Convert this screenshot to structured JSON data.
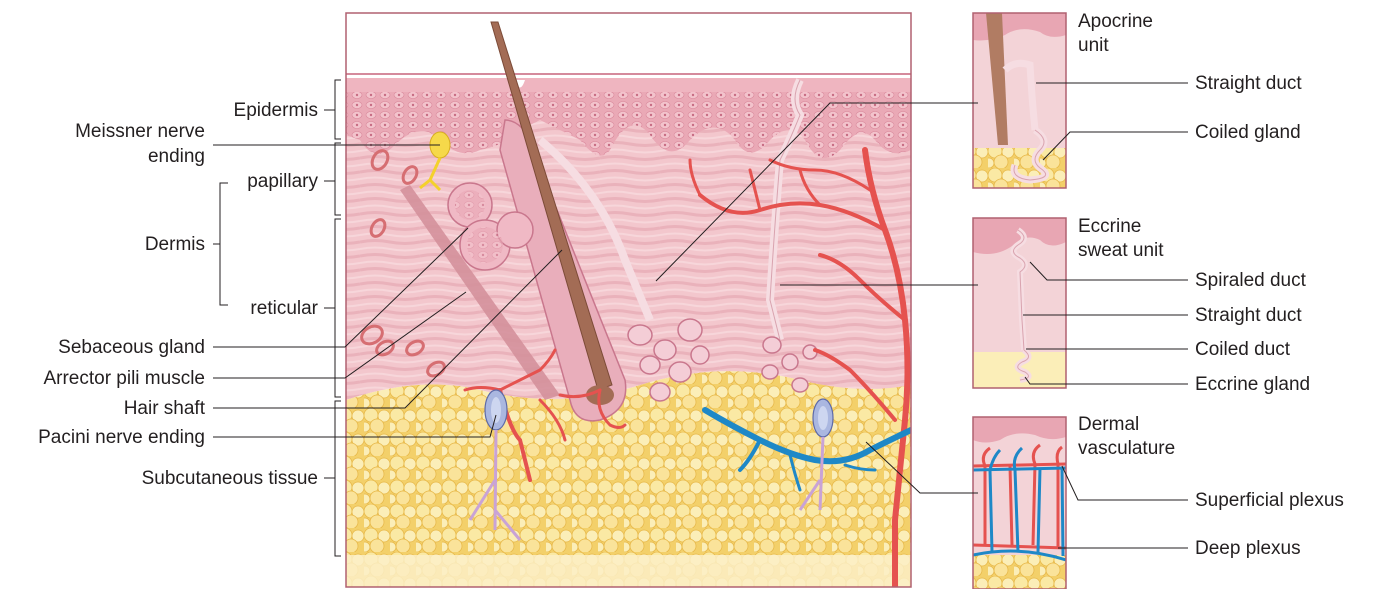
{
  "left_labels": {
    "epidermis": "Epidermis",
    "meissner_line1": "Meissner nerve",
    "meissner_line2": "ending",
    "papillary": "papillary",
    "dermis": "Dermis",
    "reticular": "reticular",
    "sebaceous_gland": "Sebaceous gland",
    "arrector_pili": "Arrector pili muscle",
    "hair_shaft": "Hair shaft",
    "pacini": "Pacini nerve ending",
    "subcutaneous": "Subcutaneous tissue"
  },
  "panels": {
    "apocrine": {
      "title_line1": "Apocrine",
      "title_line2": "unit",
      "straight_duct": "Straight duct",
      "coiled_gland": "Coiled gland"
    },
    "eccrine": {
      "title_line1": "Eccrine",
      "title_line2": "sweat unit",
      "spiraled_duct": "Spiraled duct",
      "straight_duct": "Straight duct",
      "coiled_duct": "Coiled duct",
      "eccrine_gland": "Eccrine gland"
    },
    "vasculature": {
      "title_line1": "Dermal",
      "title_line2": "vasculature",
      "superficial_plexus": "Superficial plexus",
      "deep_plexus": "Deep plexus"
    }
  },
  "colors": {
    "epidermis": "#e9a6b4",
    "dermis": "#f3c6cc",
    "fat": "#f7dd84",
    "fat_light": "#fbeeb8",
    "hair": "#b17c63",
    "artery": "#e5524f",
    "vein": "#1e88c7",
    "nerve": "#f4d12c",
    "frame": "#b06070"
  }
}
